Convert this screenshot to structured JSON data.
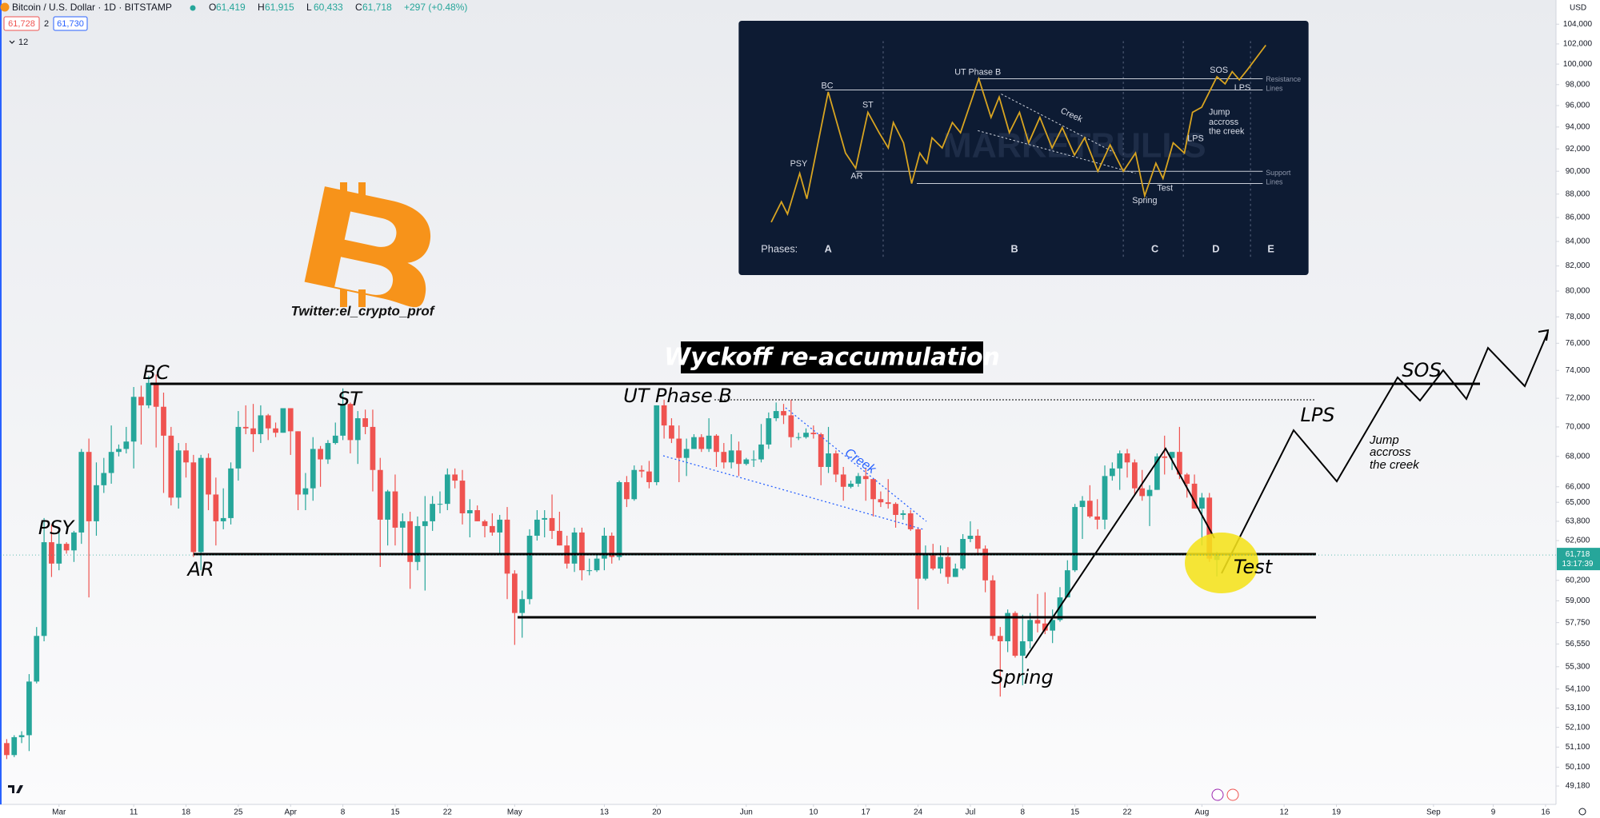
{
  "header": {
    "symbol": "Bitcoin / U.S. Dollar · 1D · BITSTAMP",
    "ohlc": [
      {
        "key": "O",
        "value": "61,419"
      },
      {
        "key": "H",
        "value": "61,915"
      },
      {
        "key": "L",
        "value": "60,433"
      },
      {
        "key": "C",
        "value": "61,718"
      }
    ],
    "change": "+297 (+0.48%)",
    "sell": "61,728",
    "spread": "2",
    "buy": "61,730",
    "indicators": "12"
  },
  "chart_data": {
    "type": "candlestick",
    "currency": "USD",
    "colors": {
      "up": "#26a69a",
      "down": "#ef5350"
    },
    "log_scale": true,
    "grid": false,
    "ylim": [
      48300,
      106500
    ],
    "yticks": [
      {
        "value": 104000,
        "label": "104,000"
      },
      {
        "value": 102000,
        "label": "102,000"
      },
      {
        "value": 100000,
        "label": "100,000"
      },
      {
        "value": 98000,
        "label": "98,000"
      },
      {
        "value": 96000,
        "label": "96,000"
      },
      {
        "value": 94000,
        "label": "94,000"
      },
      {
        "value": 92000,
        "label": "92,000"
      },
      {
        "value": 90000,
        "label": "90,000"
      },
      {
        "value": 88000,
        "label": "88,000"
      },
      {
        "value": 86000,
        "label": "86,000"
      },
      {
        "value": 84000,
        "label": "84,000"
      },
      {
        "value": 82000,
        "label": "82,000"
      },
      {
        "value": 80000,
        "label": "80,000"
      },
      {
        "value": 78000,
        "label": "78,000"
      },
      {
        "value": 76000,
        "label": "76,000"
      },
      {
        "value": 74000,
        "label": "74,000"
      },
      {
        "value": 72000,
        "label": "72,000"
      },
      {
        "value": 70000,
        "label": "70,000"
      },
      {
        "value": 68000,
        "label": "68,000"
      },
      {
        "value": 66000,
        "label": "66,000"
      },
      {
        "value": 65000,
        "label": "65,000"
      },
      {
        "value": 63800,
        "label": "63,800"
      },
      {
        "value": 62600,
        "label": "62,600"
      },
      {
        "value": 60200,
        "label": "60,200"
      },
      {
        "value": 59000,
        "label": "59,000"
      },
      {
        "value": 57750,
        "label": "57,750"
      },
      {
        "value": 56550,
        "label": "56,550"
      },
      {
        "value": 55300,
        "label": "55,300"
      },
      {
        "value": 54100,
        "label": "54,100"
      },
      {
        "value": 53100,
        "label": "53,100"
      },
      {
        "value": 52100,
        "label": "52,100"
      },
      {
        "value": 51100,
        "label": "51,100"
      },
      {
        "value": 50100,
        "label": "50,100"
      },
      {
        "value": 49180,
        "label": "49,180"
      }
    ],
    "xlim": [
      -0.9,
      207.4
    ],
    "xticks": [
      {
        "value": 7,
        "label": "Mar"
      },
      {
        "value": 17,
        "label": "11"
      },
      {
        "value": 24,
        "label": "18"
      },
      {
        "value": 31,
        "label": "25"
      },
      {
        "value": 38,
        "label": "Apr"
      },
      {
        "value": 45,
        "label": "8"
      },
      {
        "value": 52,
        "label": "15"
      },
      {
        "value": 59,
        "label": "22"
      },
      {
        "value": 68,
        "label": "May"
      },
      {
        "value": 80,
        "label": "13"
      },
      {
        "value": 87,
        "label": "20"
      },
      {
        "value": 99,
        "label": "Jun"
      },
      {
        "value": 108,
        "label": "10"
      },
      {
        "value": 115,
        "label": "17"
      },
      {
        "value": 122,
        "label": "24"
      },
      {
        "value": 129,
        "label": "Jul"
      },
      {
        "value": 136,
        "label": "8"
      },
      {
        "value": 143,
        "label": "15"
      },
      {
        "value": 150,
        "label": "22"
      },
      {
        "value": 160,
        "label": "Aug"
      },
      {
        "value": 171,
        "label": "12"
      },
      {
        "value": 178,
        "label": "19"
      },
      {
        "value": 191,
        "label": "Sep"
      },
      {
        "value": 199,
        "label": "9"
      },
      {
        "value": 206,
        "label": "16"
      }
    ],
    "last_price": {
      "value": 61718,
      "label": "61,718"
    },
    "countdown": "13:17:39",
    "ohlc": [
      [
        51300,
        51500,
        50500,
        50700
      ],
      [
        50700,
        51700,
        50600,
        51600
      ],
      [
        51600,
        51900,
        51300,
        51700
      ],
      [
        51700,
        54900,
        50900,
        54500
      ],
      [
        54500,
        57500,
        54400,
        57000
      ],
      [
        57000,
        64000,
        56700,
        62500
      ],
      [
        62500,
        63600,
        60400,
        61200
      ],
      [
        61200,
        63200,
        60800,
        62400
      ],
      [
        62400,
        62500,
        61800,
        62000
      ],
      [
        62000,
        63200,
        61300,
        63100
      ],
      [
        63100,
        68500,
        62400,
        68300
      ],
      [
        68300,
        69200,
        59200,
        63800
      ],
      [
        63800,
        67600,
        62900,
        66100
      ],
      [
        66100,
        67900,
        65600,
        66900
      ],
      [
        66900,
        70100,
        66200,
        68300
      ],
      [
        68300,
        68800,
        68000,
        68500
      ],
      [
        68500,
        70000,
        68200,
        69000
      ],
      [
        69000,
        72800,
        67200,
        72100
      ],
      [
        72100,
        72900,
        68800,
        71500
      ],
      [
        71500,
        73600,
        71300,
        73100
      ],
      [
        73100,
        73700,
        68600,
        71400
      ],
      [
        71400,
        72400,
        65600,
        69400
      ],
      [
        69400,
        70000,
        64800,
        65300
      ],
      [
        65300,
        68900,
        64600,
        68400
      ],
      [
        68400,
        68900,
        66600,
        67600
      ],
      [
        67600,
        68100,
        61600,
        61900
      ],
      [
        61900,
        68100,
        60800,
        67900
      ],
      [
        67900,
        68200,
        64500,
        65500
      ],
      [
        65500,
        66600,
        62300,
        63800
      ],
      [
        63800,
        65900,
        63300,
        64000
      ],
      [
        64000,
        67600,
        63600,
        67200
      ],
      [
        67200,
        71100,
        66400,
        70000
      ],
      [
        70000,
        71500,
        69500,
        69900
      ],
      [
        69900,
        71600,
        68300,
        69500
      ],
      [
        69500,
        71500,
        68900,
        70800
      ],
      [
        70800,
        70900,
        69100,
        69900
      ],
      [
        69900,
        70300,
        69300,
        69600
      ],
      [
        69600,
        71300,
        69600,
        71300
      ],
      [
        71300,
        71300,
        68100,
        69700
      ],
      [
        69700,
        69700,
        64500,
        65500
      ],
      [
        65500,
        66900,
        64500,
        65900
      ],
      [
        65900,
        69300,
        65100,
        68500
      ],
      [
        68500,
        68700,
        66000,
        67800
      ],
      [
        67800,
        69100,
        67500,
        68900
      ],
      [
        68900,
        70300,
        68800,
        69400
      ],
      [
        69400,
        72700,
        69100,
        71600
      ],
      [
        71600,
        71700,
        68200,
        69100
      ],
      [
        69100,
        71100,
        67500,
        70600
      ],
      [
        70600,
        71200,
        69500,
        70000
      ],
      [
        70000,
        71200,
        65700,
        67100
      ],
      [
        67100,
        67900,
        61000,
        63900
      ],
      [
        63900,
        65800,
        62300,
        65700
      ],
      [
        65700,
        66800,
        62300,
        63400
      ],
      [
        63400,
        64300,
        61800,
        63800
      ],
      [
        63800,
        64400,
        59700,
        61300
      ],
      [
        61300,
        64100,
        60800,
        63500
      ],
      [
        63500,
        65400,
        59600,
        63800
      ],
      [
        63800,
        65400,
        63200,
        64900
      ],
      [
        64900,
        65700,
        64300,
        64900
      ],
      [
        64900,
        67200,
        64500,
        66800
      ],
      [
        66800,
        67200,
        65900,
        66400
      ],
      [
        66400,
        67100,
        63600,
        64300
      ],
      [
        64300,
        65200,
        62800,
        64500
      ],
      [
        64500,
        64800,
        63800,
        63800
      ],
      [
        63800,
        63900,
        62800,
        63500
      ],
      [
        63500,
        64300,
        62900,
        63100
      ],
      [
        63100,
        64200,
        61800,
        63900
      ],
      [
        63900,
        64700,
        59100,
        60600
      ],
      [
        60600,
        60800,
        56500,
        58300
      ],
      [
        58300,
        59600,
        56900,
        59100
      ],
      [
        59100,
        63300,
        58800,
        62900
      ],
      [
        62900,
        64500,
        62600,
        63900
      ],
      [
        63900,
        64500,
        62800,
        64000
      ],
      [
        64000,
        65500,
        62700,
        63200
      ],
      [
        63200,
        64400,
        62300,
        62300
      ],
      [
        62300,
        62900,
        60900,
        61200
      ],
      [
        61200,
        63400,
        60700,
        63100
      ],
      [
        63100,
        63400,
        60200,
        60800
      ],
      [
        60800,
        61500,
        60500,
        60800
      ],
      [
        60800,
        61800,
        60700,
        61500
      ],
      [
        61500,
        63400,
        60800,
        62900
      ],
      [
        62900,
        63100,
        61200,
        61600
      ],
      [
        61600,
        66400,
        61400,
        66300
      ],
      [
        66300,
        66700,
        64700,
        65200
      ],
      [
        65200,
        67400,
        65100,
        67100
      ],
      [
        67100,
        67400,
        66600,
        67000
      ],
      [
        67000,
        67700,
        65900,
        66300
      ],
      [
        66300,
        71500,
        66100,
        71500
      ],
      [
        71500,
        71900,
        69200,
        70100
      ],
      [
        70100,
        70600,
        68900,
        69200
      ],
      [
        69200,
        70100,
        66300,
        67900
      ],
      [
        67900,
        69200,
        66700,
        68500
      ],
      [
        68500,
        69500,
        68500,
        69300
      ],
      [
        69300,
        69500,
        68300,
        68500
      ],
      [
        68500,
        70600,
        68300,
        69400
      ],
      [
        69400,
        69500,
        67300,
        68300
      ],
      [
        68300,
        68900,
        67200,
        67600
      ],
      [
        67600,
        69500,
        67200,
        68400
      ],
      [
        68400,
        69000,
        66700,
        67500
      ],
      [
        67500,
        67900,
        67400,
        67800
      ],
      [
        67800,
        68400,
        67300,
        67800
      ],
      [
        67800,
        70200,
        67600,
        68800
      ],
      [
        68800,
        71000,
        68500,
        70600
      ],
      [
        70600,
        71700,
        70400,
        71100
      ],
      [
        71100,
        71600,
        70200,
        70800
      ],
      [
        70800,
        71900,
        68600,
        69300
      ],
      [
        69300,
        69600,
        69100,
        69300
      ],
      [
        69300,
        69900,
        69200,
        69600
      ],
      [
        69600,
        70100,
        69200,
        69500
      ],
      [
        69500,
        69600,
        66100,
        67300
      ],
      [
        67300,
        70000,
        66900,
        68200
      ],
      [
        68200,
        68400,
        66300,
        66800
      ],
      [
        66800,
        67300,
        65100,
        66000
      ],
      [
        66000,
        66400,
        65900,
        66200
      ],
      [
        66200,
        66900,
        66000,
        66700
      ],
      [
        66700,
        67200,
        65100,
        66500
      ],
      [
        66500,
        66500,
        64100,
        65200
      ],
      [
        65200,
        65700,
        64700,
        65000
      ],
      [
        65000,
        66500,
        64600,
        64900
      ],
      [
        64900,
        65000,
        63400,
        64200
      ],
      [
        64200,
        64500,
        63900,
        64300
      ],
      [
        64300,
        64500,
        63200,
        63300
      ],
      [
        63300,
        63400,
        58500,
        60300
      ],
      [
        60300,
        62300,
        60200,
        61800
      ],
      [
        61800,
        62400,
        60800,
        60900
      ],
      [
        60900,
        62300,
        60600,
        61600
      ],
      [
        61600,
        62200,
        60000,
        60400
      ],
      [
        60400,
        61200,
        60400,
        60900
      ],
      [
        60900,
        63000,
        60800,
        62700
      ],
      [
        62700,
        63800,
        62500,
        62900
      ],
      [
        62900,
        63300,
        61800,
        62100
      ],
      [
        62100,
        62300,
        59500,
        60200
      ],
      [
        60200,
        60500,
        56800,
        57000
      ],
      [
        57000,
        57500,
        53700,
        56700
      ],
      [
        56700,
        58500,
        56100,
        58300
      ],
      [
        58300,
        58400,
        55800,
        55900
      ],
      [
        55900,
        58200,
        54300,
        56700
      ],
      [
        56700,
        58300,
        56300,
        57900
      ],
      [
        57900,
        59400,
        57200,
        57700
      ],
      [
        57700,
        59500,
        57100,
        57300
      ],
      [
        57300,
        58500,
        56600,
        57900
      ],
      [
        57900,
        59800,
        57800,
        59200
      ],
      [
        59200,
        61400,
        59200,
        60800
      ],
      [
        60800,
        64900,
        60700,
        64700
      ],
      [
        64700,
        65400,
        62700,
        65100
      ],
      [
        65100,
        66100,
        64000,
        64100
      ],
      [
        64100,
        65200,
        63300,
        63900
      ],
      [
        63900,
        67400,
        63300,
        66700
      ],
      [
        66700,
        67600,
        66400,
        67200
      ],
      [
        67200,
        68400,
        65800,
        68200
      ],
      [
        68200,
        68500,
        66600,
        67600
      ],
      [
        67600,
        67800,
        65500,
        65900
      ],
      [
        65900,
        67100,
        65100,
        65400
      ],
      [
        65400,
        66100,
        63500,
        65800
      ],
      [
        65800,
        68200,
        65800,
        68000
      ],
      [
        68000,
        69400,
        66800,
        67900
      ],
      [
        67900,
        68300,
        67100,
        68300
      ],
      [
        68300,
        70000,
        66500,
        66800
      ],
      [
        66800,
        66900,
        65300,
        66200
      ],
      [
        66200,
        66800,
        64600,
        64600
      ],
      [
        64600,
        65600,
        62300,
        65300
      ],
      [
        65300,
        65600,
        61300,
        61500
      ],
      [
        61419,
        61915,
        60433,
        61718
      ]
    ]
  },
  "annotations": {
    "title": "Wyckoff re-accumulation",
    "bc": "BC",
    "st": "ST",
    "ut": "UT Phase B",
    "psy": "PSY",
    "ar": "AR",
    "creek": "Creek",
    "spring": "Spring",
    "test": "Test",
    "lps": "LPS",
    "sos": "SOS",
    "jump": [
      "Jump",
      "accross",
      "the creek"
    ],
    "credit": "Twitter:el_crypto_prof"
  },
  "inset": {
    "watermark": "MARKETBULLS",
    "bc": "BC",
    "psy": "PSY",
    "ar": "AR",
    "st": "ST",
    "ut": "UT Phase B",
    "creek": "Creek",
    "sos": "SOS",
    "lps_top": "LPS",
    "lps": "LPS",
    "jump": [
      "Jump",
      "accross",
      "the creek"
    ],
    "test": "Test",
    "spring": "Spring",
    "resistance": [
      "Resistance",
      "Lines"
    ],
    "support": [
      "Support",
      "Lines"
    ],
    "phases_label": "Phases:",
    "phases": [
      "A",
      "B",
      "C",
      "D",
      "E"
    ]
  }
}
